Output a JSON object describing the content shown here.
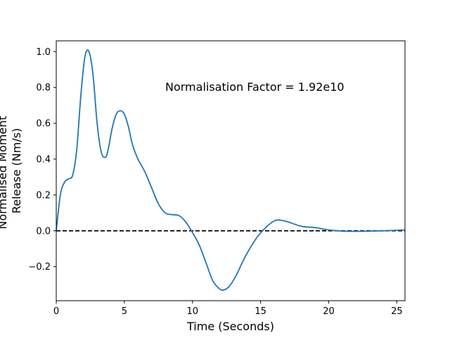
{
  "chart_data": {
    "type": "line",
    "title": "",
    "xlabel": "Time (Seconds)",
    "ylabel_lines": [
      "Normalised Moment",
      "Release (Nm/s)"
    ],
    "xlim": [
      0,
      25.6
    ],
    "ylim": [
      -0.39,
      1.06
    ],
    "xticks": [
      0,
      5,
      10,
      15,
      20,
      25
    ],
    "yticks": [
      -0.2,
      0.0,
      0.2,
      0.4,
      0.6,
      0.8,
      1.0
    ],
    "xtick_labels": [
      "0",
      "5",
      "10",
      "15",
      "20",
      "25"
    ],
    "ytick_labels": [
      "−0.2",
      "0.0",
      "0.2",
      "0.4",
      "0.6",
      "0.8",
      "1.0"
    ],
    "annotation": {
      "text": "Normalisation Factor = 1.92e10",
      "x": 8.0,
      "y": 0.8
    },
    "grid": false,
    "legend": "none",
    "series": [
      {
        "color": "#1f77b4",
        "x": [
          0,
          0.3,
          0.6,
          0.9,
          1.2,
          1.5,
          1.8,
          2.1,
          2.4,
          2.7,
          3.0,
          3.3,
          3.6,
          3.8,
          4.1,
          4.4,
          4.7,
          5.0,
          5.3,
          5.6,
          6.0,
          6.5,
          7.0,
          7.5,
          8.0,
          8.5,
          9.0,
          9.5,
          10.0,
          10.5,
          11.0,
          11.5,
          12.0,
          12.3,
          12.7,
          13.2,
          13.7,
          14.2,
          14.8,
          15.4,
          16.0,
          16.4,
          17.0,
          18.0,
          19.0,
          20.0,
          21.0,
          22.0,
          23.0,
          24.0,
          25.0,
          25.6
        ],
        "y": [
          0.0,
          0.2,
          0.27,
          0.29,
          0.31,
          0.45,
          0.75,
          0.97,
          1.0,
          0.87,
          0.6,
          0.44,
          0.41,
          0.45,
          0.57,
          0.65,
          0.67,
          0.65,
          0.58,
          0.48,
          0.4,
          0.33,
          0.24,
          0.15,
          0.1,
          0.09,
          0.085,
          0.05,
          -0.01,
          -0.08,
          -0.18,
          -0.28,
          -0.325,
          -0.33,
          -0.31,
          -0.25,
          -0.17,
          -0.1,
          -0.03,
          0.02,
          0.055,
          0.06,
          0.05,
          0.025,
          0.018,
          0.005,
          -0.002,
          -0.003,
          -0.002,
          0.0,
          0.003,
          0.005
        ]
      }
    ],
    "reference_line": {
      "y": 0.0,
      "style": "dashed",
      "color": "#000000"
    }
  }
}
